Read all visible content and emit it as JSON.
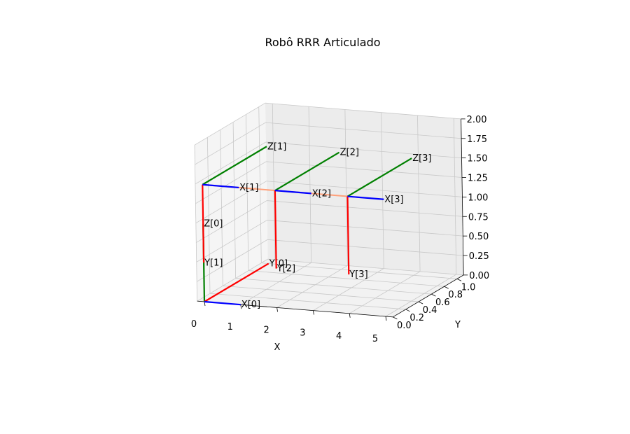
{
  "chart_data": {
    "type": "line",
    "projection": "3d",
    "title": "Robô RRR Articulado",
    "xlabel": "X",
    "ylabel": "Y",
    "zlabel": "",
    "xlim": [
      -0.2,
      5.2
    ],
    "ylim": [
      0,
      1.1
    ],
    "zlim": [
      0,
      2.0
    ],
    "grid": true,
    "x_ticks": [
      "0",
      "1",
      "2",
      "3",
      "4",
      "5"
    ],
    "y_ticks": [
      "0.0",
      "0.2",
      "0.4",
      "0.6",
      "0.8",
      "1.0"
    ],
    "z_ticks": [
      "0.00",
      "0.25",
      "0.50",
      "0.75",
      "1.00",
      "1.25",
      "1.50",
      "1.75",
      "2.00"
    ],
    "links": [
      {
        "from": [
          0,
          0,
          1.5
        ],
        "to": [
          2,
          0,
          1.5
        ],
        "color": "#ffa07a"
      },
      {
        "from": [
          2,
          0,
          1.5
        ],
        "to": [
          4,
          0,
          1.5
        ],
        "color": "#ffa07a"
      }
    ],
    "frames": [
      {
        "name": "0",
        "origin": [
          0,
          0,
          0
        ],
        "axes": {
          "X": [
            1,
            0,
            0
          ],
          "Y": [
            0,
            1,
            0
          ],
          "Z": [
            0,
            0,
            1
          ]
        }
      },
      {
        "name": "1",
        "origin": [
          0,
          0,
          1.5
        ],
        "axes": {
          "X": [
            1,
            0,
            0
          ],
          "Y": [
            0,
            0,
            -1
          ],
          "Z": [
            0,
            1,
            0
          ]
        }
      },
      {
        "name": "2",
        "origin": [
          2,
          0,
          1.5
        ],
        "axes": {
          "X": [
            1,
            0,
            0
          ],
          "Y": [
            0,
            0,
            -1
          ],
          "Z": [
            0,
            1,
            0
          ]
        }
      },
      {
        "name": "3",
        "origin": [
          4,
          0,
          1.5
        ],
        "axes": {
          "X": [
            1,
            0,
            0
          ],
          "Y": [
            0,
            0,
            -1
          ],
          "Z": [
            0,
            1,
            0
          ]
        }
      }
    ],
    "axis_colors": {
      "X": "#0000ff",
      "Y": "#ff0000",
      "Z": "#008000"
    },
    "axis_label_prefixes": {
      "X": "X",
      "Y": "Y",
      "Z": "Z"
    }
  }
}
